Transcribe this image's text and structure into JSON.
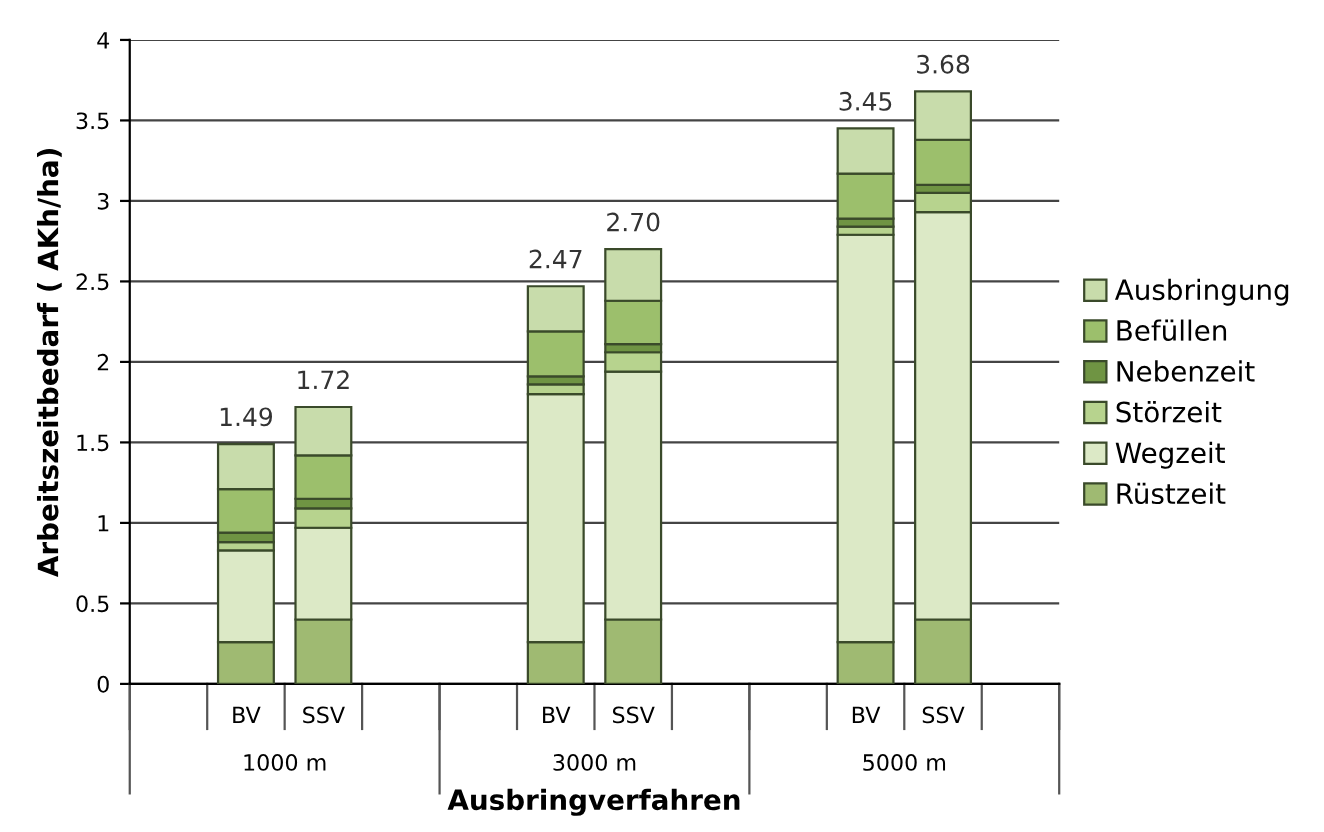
{
  "chart_data": {
    "type": "bar",
    "stacked": true,
    "xlabel": "Ausbringverfahren",
    "ylabel": "Arbeitszeitbedarf ( AKh/ha)",
    "categories": [
      null,
      "BV",
      "SSV",
      null,
      null,
      "BV",
      "SSV",
      null,
      null,
      "BV",
      "SSV",
      null
    ],
    "annotations": [
      "1000 m",
      "3000 m",
      "5000 m"
    ],
    "series": [
      {
        "name": "Rüstzeit",
        "color": "#9fba72",
        "values": [
          null,
          0.26,
          0.4,
          null,
          null,
          0.26,
          0.4,
          null,
          null,
          0.26,
          0.4,
          null
        ]
      },
      {
        "name": "Wegzeit",
        "color": "#dce9c6",
        "values": [
          null,
          0.57,
          0.57,
          null,
          null,
          1.54,
          1.54,
          null,
          null,
          2.53,
          2.53,
          null
        ]
      },
      {
        "name": "Störzeit",
        "color": "#b7d38e",
        "values": [
          null,
          0.05,
          0.12,
          null,
          null,
          0.06,
          0.12,
          null,
          null,
          0.05,
          0.12,
          null
        ]
      },
      {
        "name": "Nebenzeit",
        "color": "#6f9443",
        "values": [
          null,
          0.06,
          0.06,
          null,
          null,
          0.05,
          0.05,
          null,
          null,
          0.05,
          0.05,
          null
        ]
      },
      {
        "name": "Befüllen",
        "color": "#9cbf6c",
        "values": [
          null,
          0.27,
          0.27,
          null,
          null,
          0.28,
          0.27,
          null,
          null,
          0.28,
          0.28,
          null
        ]
      },
      {
        "name": "Ausbringung",
        "color": "#c8dcab",
        "values": [
          null,
          0.28,
          0.3,
          null,
          null,
          0.28,
          0.32,
          null,
          null,
          0.28,
          0.3,
          null
        ]
      }
    ],
    "totals": [
      null,
      "1.49",
      "1.72",
      null,
      null,
      "2.47",
      "2.70",
      null,
      null,
      "3.45",
      "3.68",
      null
    ],
    "ylim": [
      0,
      4
    ],
    "yticks": [
      0,
      0.5,
      1,
      1.5,
      2,
      2.5,
      3,
      3.5,
      4
    ],
    "grid": "y",
    "legend": "right"
  }
}
